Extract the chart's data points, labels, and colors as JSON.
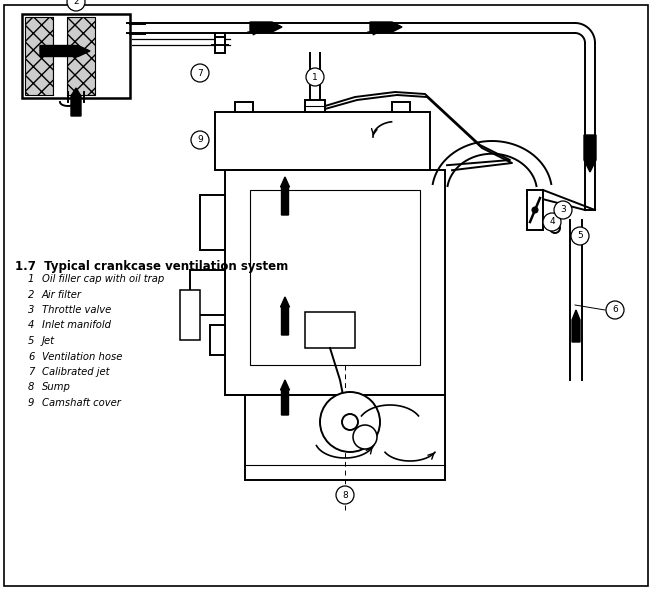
{
  "title": "1.7  Typical crankcase ventilation system",
  "background_color": "#ffffff",
  "legend_items": [
    [
      "1",
      "Oil filler cap with oil trap"
    ],
    [
      "2",
      "Air filter"
    ],
    [
      "3",
      "Throttle valve"
    ],
    [
      "4",
      "Inlet manifold"
    ],
    [
      "5",
      "Jet"
    ],
    [
      "6",
      "Ventilation hose"
    ],
    [
      "7",
      "Calibrated jet"
    ],
    [
      "8",
      "Sump"
    ],
    [
      "9",
      "Camshaft cover"
    ]
  ],
  "figsize": [
    6.53,
    5.9
  ],
  "dpi": 100
}
